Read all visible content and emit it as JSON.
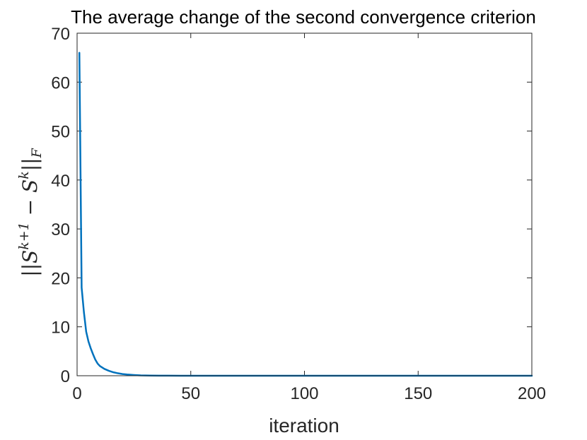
{
  "chart_data": {
    "type": "line",
    "title": "The average change of the second convergence criterion",
    "xlabel": "iteration",
    "ylabel": "||S^{k+1} − S^k||_F",
    "xlim": [
      0,
      200
    ],
    "ylim": [
      0,
      70
    ],
    "xticks": [
      0,
      50,
      100,
      150,
      200
    ],
    "yticks": [
      0,
      10,
      20,
      30,
      40,
      50,
      60,
      70
    ],
    "grid": false,
    "box": true,
    "series": [
      {
        "color": "#0072BD",
        "x": [
          1,
          2,
          3,
          4,
          5,
          6,
          7,
          8,
          9,
          10,
          12,
          14,
          16,
          18,
          20,
          22,
          25,
          28,
          32,
          36,
          40,
          50,
          60,
          80,
          100,
          120,
          150,
          180,
          200
        ],
        "y": [
          66,
          18,
          13,
          9,
          7,
          5.6,
          4.4,
          3.3,
          2.5,
          2.0,
          1.4,
          1.0,
          0.7,
          0.5,
          0.35,
          0.25,
          0.15,
          0.08,
          0.04,
          0.02,
          0.01,
          0.005,
          0.002,
          0.001,
          0,
          0,
          0,
          0,
          0
        ]
      }
    ]
  }
}
